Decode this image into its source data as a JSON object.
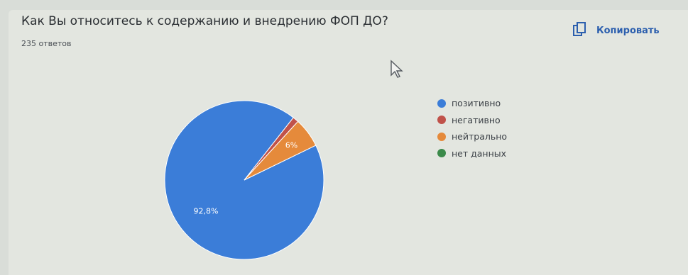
{
  "card": {
    "title": "Как Вы относитесь к содержанию и внедрению ФОП ДО?",
    "responses": "235 ответов",
    "copy_label": "Копировать"
  },
  "colors": {
    "positive": "#3b7dd8",
    "negative": "#c0524a",
    "neutral": "#e58a3b",
    "no_data": "#3b8a4a",
    "accent": "#2c5fae"
  },
  "chart_data": {
    "type": "pie",
    "title": "Как Вы относитесь к содержанию и внедрению ФОП ДО?",
    "categories": [
      "позитивно",
      "негативно",
      "нейтрально",
      "нет данных"
    ],
    "values": [
      92.8,
      1.2,
      6.0,
      0.0
    ],
    "data_labels": [
      "92,8%",
      "",
      "6%",
      ""
    ],
    "legend_position": "right"
  }
}
